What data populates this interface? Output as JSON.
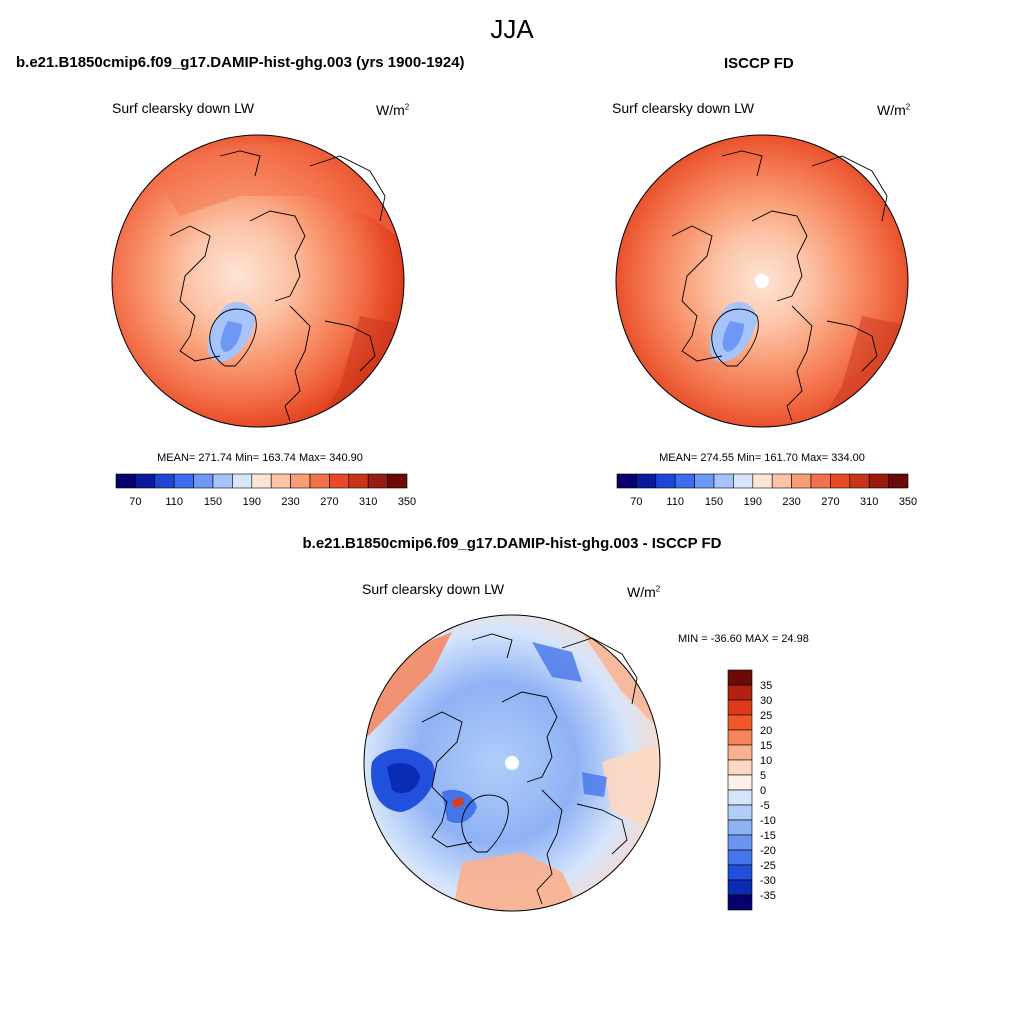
{
  "season": "JJA",
  "panels": [
    {
      "title": "b.e21.B1850cmip6.f09_g17.DAMIP-hist-ghg.003 (yrs 1900-1924)",
      "variable": "Surf clearsky down LW",
      "units_base": "W/m",
      "units_exp": "2",
      "stats": "MEAN= 271.74  Min= 163.74  Max= 340.90",
      "colorbar_labels": [
        "70",
        "110",
        "150",
        "190",
        "230",
        "270",
        "310",
        "350"
      ]
    },
    {
      "title": "ISCCP FD",
      "variable": "Surf clearsky down LW",
      "units_base": "W/m",
      "units_exp": "2",
      "stats": "MEAN= 274.55  Min= 161.70  Max= 334.00",
      "colorbar_labels": [
        "70",
        "110",
        "150",
        "190",
        "230",
        "270",
        "310",
        "350"
      ]
    }
  ],
  "diff": {
    "title": "b.e21.B1850cmip6.f09_g17.DAMIP-hist-ghg.003 - ISCCP FD",
    "variable": "Surf clearsky down LW",
    "units_base": "W/m",
    "units_exp": "2",
    "stats": "MIN = -36.60 MAX =  24.98",
    "colorbar_labels": [
      "35",
      "30",
      "25",
      "20",
      "15",
      "10",
      "5",
      "0",
      "-5",
      "-10",
      "-15",
      "-20",
      "-25",
      "-30",
      "-35"
    ]
  },
  "colors": {
    "seq_scale": [
      "#08006e",
      "#0a1a9e",
      "#1f45d6",
      "#3e6df0",
      "#6d98f6",
      "#a6c4fb",
      "#d7e6fd",
      "#fde5d6",
      "#fcc3a6",
      "#f99d76",
      "#f3724b",
      "#e64a26",
      "#c8331a",
      "#9a1c10",
      "#6b0a06"
    ],
    "diff_scale": [
      "#6b0a06",
      "#b2200f",
      "#de3a17",
      "#f0582c",
      "#f7855a",
      "#fbb08e",
      "#fdd8c2",
      "#fdf0e8",
      "#d6e5fb",
      "#b1cdf8",
      "#8fb2f5",
      "#6b95f1",
      "#4674e9",
      "#2150dd",
      "#0a2cb4",
      "#08006e"
    ]
  }
}
